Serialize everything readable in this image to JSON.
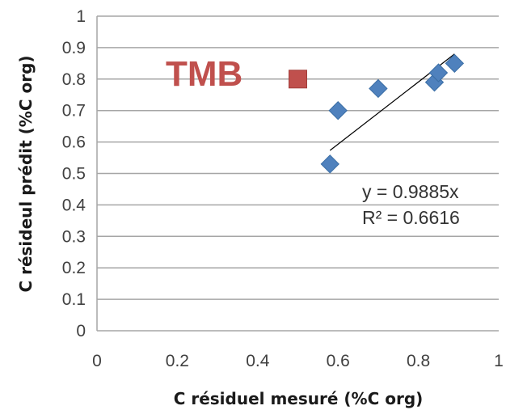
{
  "chart_data": {
    "type": "scatter",
    "xlabel": "C résiduel mesuré (%C org)",
    "ylabel": "C résideul prédit (%C org)",
    "xlim": [
      0,
      1
    ],
    "ylim": [
      0,
      1
    ],
    "x_ticks": [
      "0",
      "0.2",
      "0.4",
      "0.6",
      "0.8",
      "1"
    ],
    "y_ticks": [
      "0",
      "0.1",
      "0.2",
      "0.3",
      "0.4",
      "0.5",
      "0.6",
      "0.7",
      "0.8",
      "0.9",
      "1"
    ],
    "grid": "horizontal",
    "series": [
      {
        "marker": "diamond",
        "color": "#4f81bd",
        "points": [
          {
            "x": 0.58,
            "y": 0.53
          },
          {
            "x": 0.6,
            "y": 0.7
          },
          {
            "x": 0.7,
            "y": 0.77
          },
          {
            "x": 0.84,
            "y": 0.79
          },
          {
            "x": 0.85,
            "y": 0.82
          },
          {
            "x": 0.89,
            "y": 0.85
          }
        ]
      },
      {
        "name": "TMB",
        "marker": "square",
        "color": "#c0504d",
        "points": [
          {
            "x": 0.5,
            "y": 0.8
          }
        ]
      }
    ],
    "trendline": {
      "type": "linear",
      "slope": 0.9885,
      "x_range": [
        0.58,
        0.89
      ],
      "equation": "y = 0.9885x",
      "r_squared": "R² = 0.6616",
      "color": "#000000"
    },
    "annotation_label": "TMB",
    "annotation_color": "#c0504d"
  }
}
